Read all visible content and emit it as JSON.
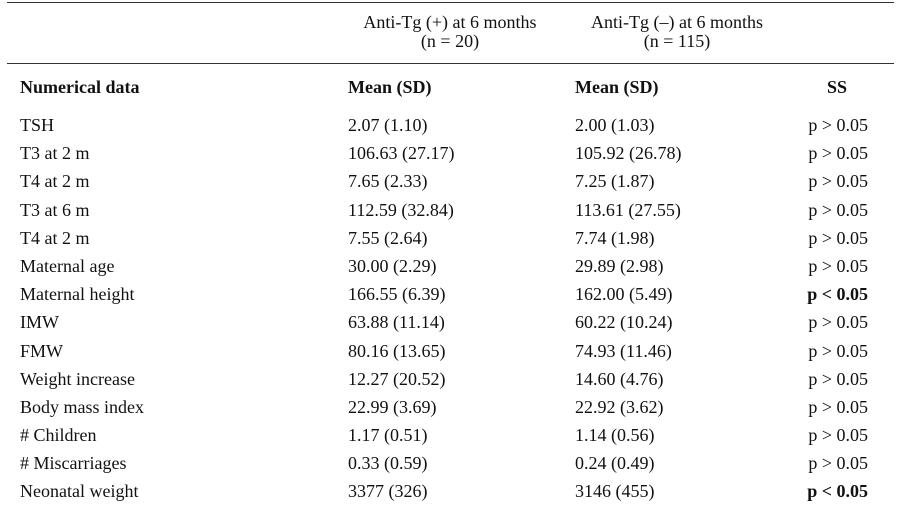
{
  "groups": {
    "pos": {
      "title": "Anti-Tg (+) at 6 months",
      "n": "(n = 20)"
    },
    "neg": {
      "title": "Anti-Tg (–) at 6 months",
      "n": "(n = 115)"
    }
  },
  "headers": {
    "label": "Numerical data",
    "mean1": "Mean (SD)",
    "mean2": "Mean (SD)",
    "ss": "SS"
  },
  "rows": [
    {
      "label": "TSH",
      "pos": "2.07 (1.10)",
      "neg": "2.00 (1.03)",
      "ss": "p > 0.05",
      "significant": false
    },
    {
      "label": "T3 at 2 m",
      "pos": "106.63 (27.17)",
      "neg": "105.92 (26.78)",
      "ss": "p > 0.05",
      "significant": false
    },
    {
      "label": "T4 at 2 m",
      "pos": "7.65 (2.33)",
      "neg": "7.25 (1.87)",
      "ss": "p > 0.05",
      "significant": false
    },
    {
      "label": "T3 at 6 m",
      "pos": "112.59 (32.84)",
      "neg": "113.61 (27.55)",
      "ss": "p > 0.05",
      "significant": false
    },
    {
      "label": "T4 at 2 m",
      "pos": "7.55 (2.64)",
      "neg": "7.74 (1.98)",
      "ss": "p > 0.05",
      "significant": false
    },
    {
      "label": "Maternal age",
      "pos": "30.00 (2.29)",
      "neg": "29.89 (2.98)",
      "ss": "p > 0.05",
      "significant": false
    },
    {
      "label": "Maternal height",
      "pos": "166.55 (6.39)",
      "neg": "162.00 (5.49)",
      "ss": "p < 0.05",
      "significant": true
    },
    {
      "label": "IMW",
      "pos": "63.88 (11.14)",
      "neg": "60.22 (10.24)",
      "ss": "p > 0.05",
      "significant": false
    },
    {
      "label": "FMW",
      "pos": "80.16 (13.65)",
      "neg": "74.93 (11.46)",
      "ss": "p > 0.05",
      "significant": false
    },
    {
      "label": "Weight increase",
      "pos": "12.27 (20.52)",
      "neg": "14.60 (4.76)",
      "ss": "p > 0.05",
      "significant": false
    },
    {
      "label": "Body mass index",
      "pos": "22.99 (3.69)",
      "neg": "22.92 (3.62)",
      "ss": "p > 0.05",
      "significant": false
    },
    {
      "label": "# Children",
      "pos": "1.17 (0.51)",
      "neg": "1.14 (0.56)",
      "ss": "p > 0.05",
      "significant": false
    },
    {
      "label": "# Miscarriages",
      "pos": "0.33 (0.59)",
      "neg": "0.24 (0.49)",
      "ss": "p > 0.05",
      "significant": false
    },
    {
      "label": "Neonatal weight",
      "pos": "3377 (326)",
      "neg": "3146 (455)",
      "ss": "p < 0.05",
      "significant": true
    }
  ]
}
